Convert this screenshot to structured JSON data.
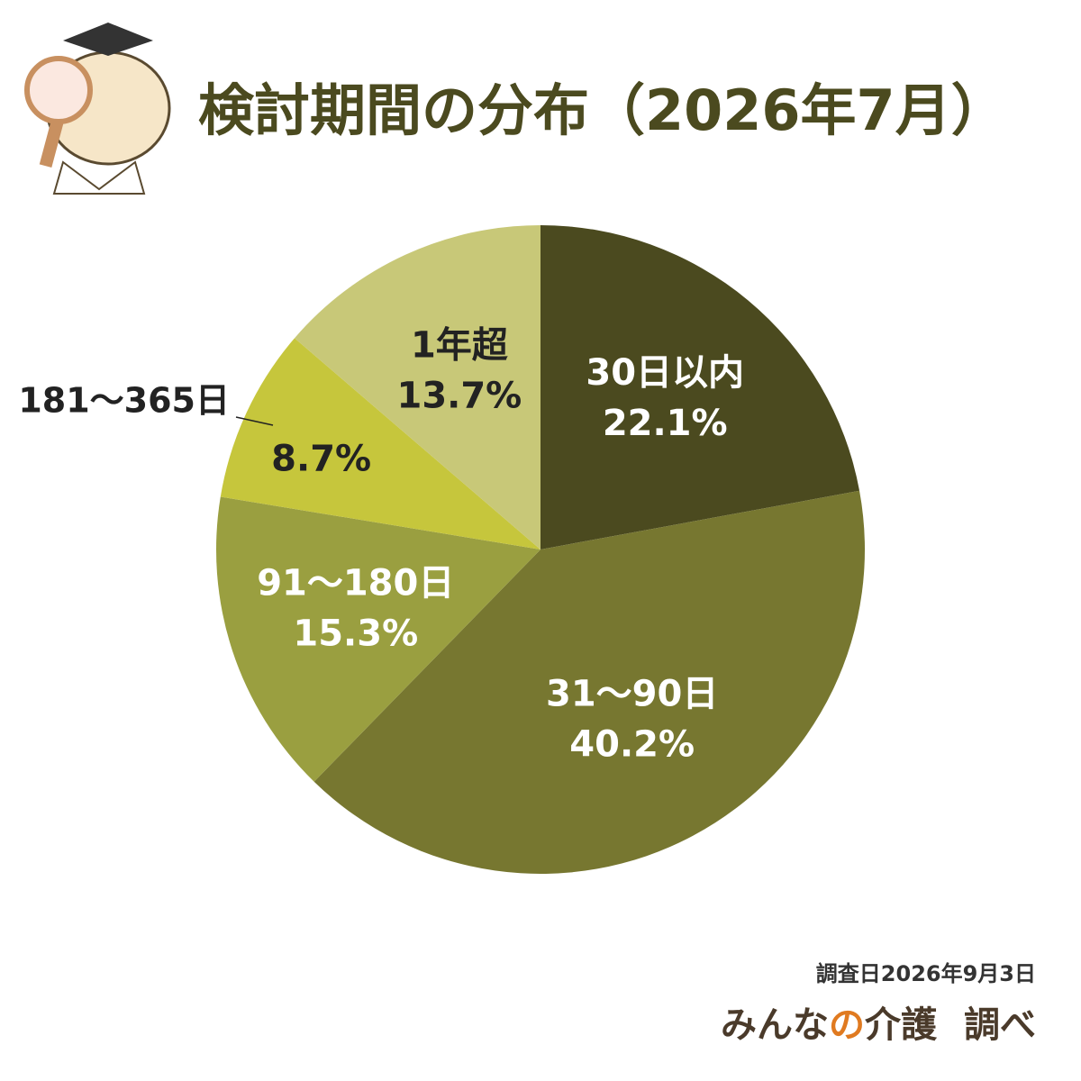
{
  "chart_data": {
    "type": "pie",
    "title": "検討期間の分布（2026年7月）",
    "categories": [
      "30日以内",
      "31〜90日",
      "91〜180日",
      "181〜365日",
      "1年超"
    ],
    "values": [
      22.1,
      40.2,
      15.3,
      8.7,
      13.7
    ],
    "value_labels": [
      "22.1%",
      "40.2%",
      "15.3%",
      "8.7%",
      "13.7%"
    ],
    "colors": [
      "#4b4a1f",
      "#777730",
      "#9a9f40",
      "#c6c63c",
      "#c8c878"
    ],
    "label_colors": [
      "#ffffff",
      "#ffffff",
      "#ffffff",
      "#222222",
      "#222222"
    ]
  },
  "footer": {
    "survey_date": "調査日2026年9月3日",
    "brand": {
      "pre": "みんな",
      "accent": "の",
      "post": "介護"
    },
    "suffix": "調べ"
  }
}
